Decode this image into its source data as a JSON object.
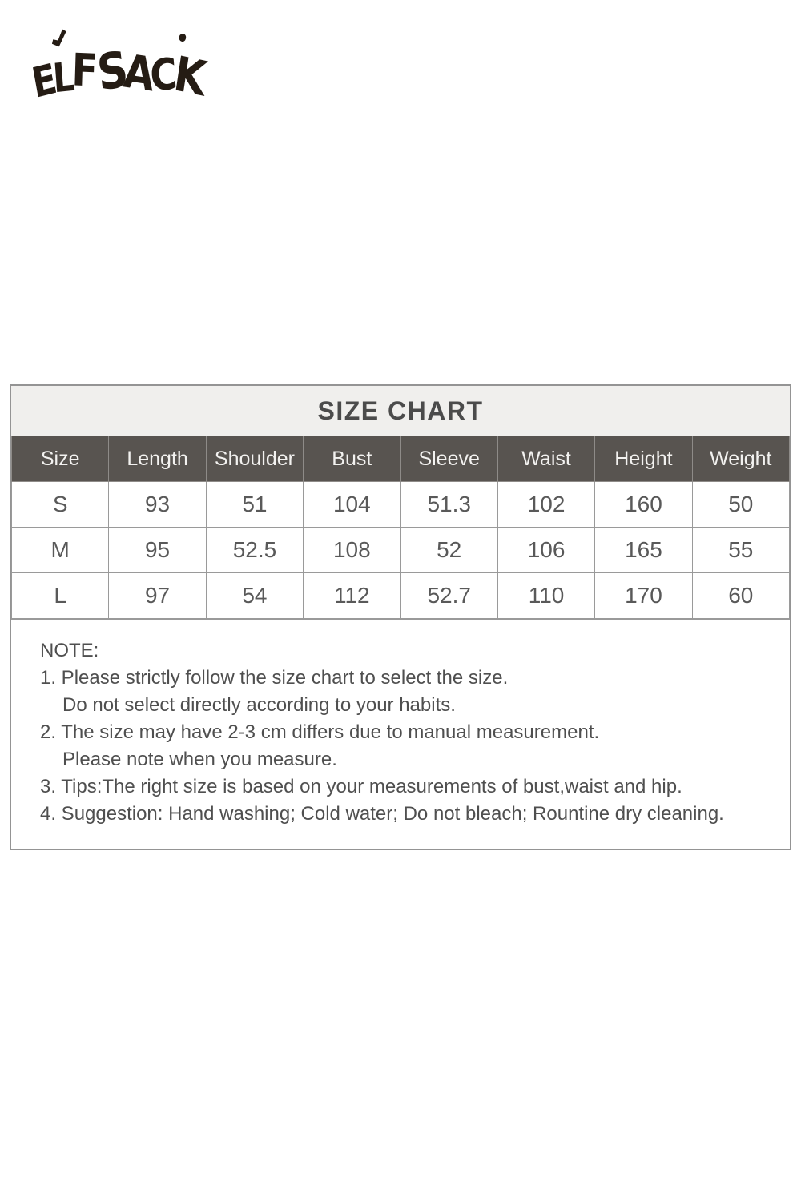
{
  "page": {
    "background": "#ffffff"
  },
  "logo": {
    "text": "ELF SACK",
    "accent_icon": "check-mark",
    "dot_icon": "dot",
    "color": "#251c14"
  },
  "size_chart": {
    "title": "SIZE CHART",
    "columns": [
      "Size",
      "Length",
      "Shoulder",
      "Bust",
      "Sleeve",
      "Waist",
      "Height",
      "Weight"
    ],
    "rows": [
      {
        "cells": [
          "S",
          "93",
          "51",
          "104",
          "51.3",
          "102",
          "160",
          "50"
        ]
      },
      {
        "cells": [
          "M",
          "95",
          "52.5",
          "108",
          "52",
          "106",
          "165",
          "55"
        ]
      },
      {
        "cells": [
          "L",
          "97",
          "54",
          "112",
          "52.7",
          "110",
          "170",
          "60"
        ]
      }
    ],
    "colors": {
      "title_bg": "#f0efed",
      "title_text": "#4b4b4b",
      "header_bg": "#585450",
      "header_text": "#f3f2f0",
      "cell_text": "#595959",
      "border": "#999999"
    }
  },
  "note": {
    "heading": "NOTE:",
    "lines": [
      {
        "text": "1. Please strictly follow the size chart to select the size.",
        "indent": false
      },
      {
        "text": "Do not select directly according to your habits.",
        "indent": true
      },
      {
        "text": "2. The size may have 2-3 cm differs due to manual measurement.",
        "indent": false
      },
      {
        "text": "Please note when you measure.",
        "indent": true
      },
      {
        "text": "3. Tips:The right size is based on your measurements of bust,waist and hip.",
        "indent": false
      },
      {
        "text": "4. Suggestion: Hand washing; Cold water; Do not bleach; Rountine dry cleaning.",
        "indent": false
      }
    ]
  }
}
